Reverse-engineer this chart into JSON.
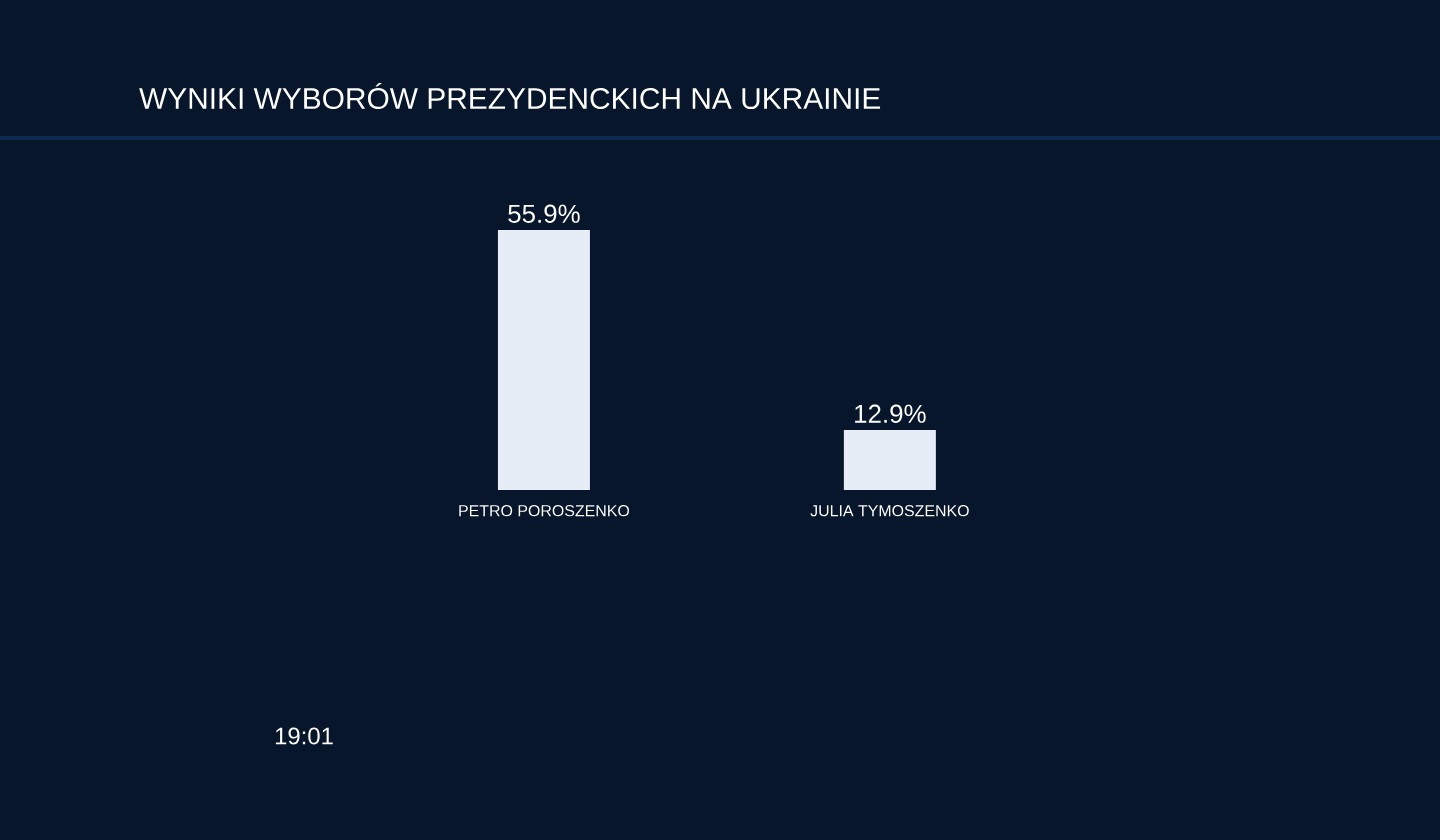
{
  "chart_data": {
    "type": "bar",
    "title": "WYNIKI WYBORÓW PREZYDENCKICH NA UKRAINIE",
    "categories": [
      "PETRO POROSZENKO",
      "JULIA TYMOSZENKO"
    ],
    "values": [
      55.9,
      12.9
    ],
    "value_labels": [
      "55.9%",
      "12.9%"
    ],
    "color": "#e6edf7",
    "ylim": [
      0,
      55.9
    ],
    "annotations": [
      "19:01"
    ]
  }
}
